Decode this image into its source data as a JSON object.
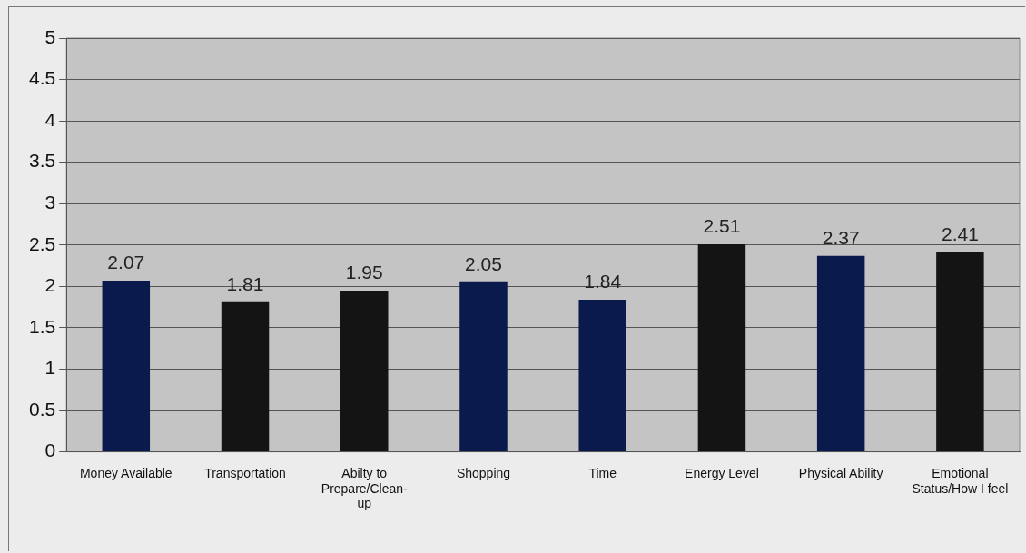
{
  "chart_data": {
    "type": "bar",
    "categories": [
      "Money Available",
      "Transportation",
      "Abilty to Prepare/Clean-up",
      "Shopping",
      "Time",
      "Energy Level",
      "Physical Ability",
      "Emotional Status/How I feel"
    ],
    "values": [
      2.07,
      1.81,
      1.95,
      2.05,
      1.84,
      2.51,
      2.37,
      2.41
    ],
    "colors": [
      "#0b1a4c",
      "#141414",
      "#141414",
      "#0b1a4c",
      "#0b1a4c",
      "#141414",
      "#0b1a4c",
      "#141414"
    ],
    "ylim": [
      0,
      5
    ],
    "yticks": [
      0,
      0.5,
      1,
      1.5,
      2,
      2.5,
      3,
      3.5,
      4,
      4.5,
      5
    ],
    "grid": "y",
    "data_labels": true,
    "legend": false
  }
}
